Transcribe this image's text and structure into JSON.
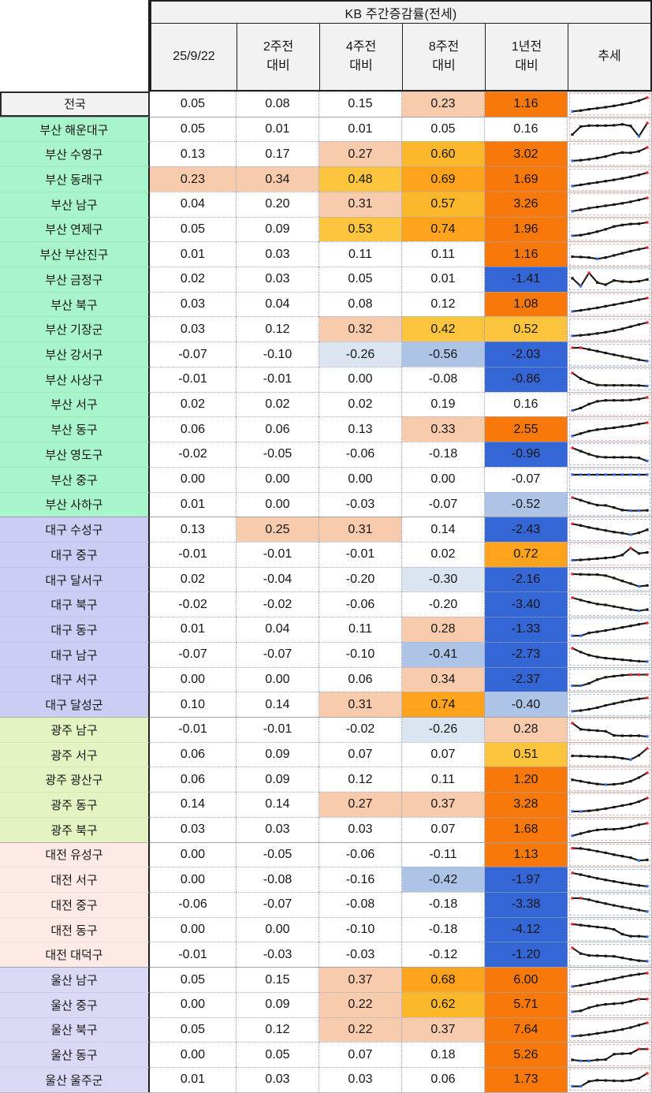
{
  "chart_data": {
    "type": "table",
    "title": "KB 주간증감률(전세)",
    "columns": [
      {
        "label": "25/9/22",
        "sub": ""
      },
      {
        "label": "2주전",
        "sub": "대비"
      },
      {
        "label": "4주전",
        "sub": "대비"
      },
      {
        "label": "8주전",
        "sub": "대비"
      },
      {
        "label": "1년전",
        "sub": "대비"
      },
      {
        "label": "추세",
        "sub": ""
      }
    ],
    "group_colors": {
      "national": "#f2f2f2",
      "busan": "#a8f4cb",
      "daegu": "#ccccf4",
      "gwangju": "#e5f3c2",
      "daejeon": "#fdeae7",
      "ulsan": "#d9d9f5"
    },
    "heat_scale": [
      {
        "min": 1.0,
        "color": "#f8790a"
      },
      {
        "min": 0.65,
        "color": "#ffa21c"
      },
      {
        "min": 0.55,
        "color": "#fdb72a"
      },
      {
        "min": 0.405,
        "color": "#fcc53d"
      },
      {
        "min": 0.21,
        "color": "#f8cbad"
      },
      {
        "min": -0.2099,
        "color": "#ffffff"
      },
      {
        "min": -0.3499,
        "color": "#dbe5f1"
      },
      {
        "min": -0.5999,
        "color": "#aec4e7"
      },
      {
        "min": -99,
        "color": "#3566d6"
      }
    ],
    "trend_border_colors": {
      "positive": "#f2aeaa",
      "negative": "#a5bdec"
    },
    "spark_colors": {
      "line": "#161616",
      "point": "#161616",
      "high": "#f52222",
      "low": "#2e6bee"
    },
    "rows": [
      {
        "region": "전국",
        "group": "national",
        "values": [
          "0.05",
          "0.08",
          "0.15",
          "0.23",
          "1.16"
        ],
        "trend": [
          0.06,
          0.12,
          0.2,
          0.27,
          0.34,
          0.42,
          0.52,
          0.62,
          0.76,
          0.96
        ]
      },
      {
        "region": "부산 해운대구",
        "group": "busan",
        "values": [
          "0.05",
          "0.01",
          "0.01",
          "0.05",
          "0.16"
        ],
        "trend": [
          0.2,
          0.72,
          0.78,
          0.78,
          0.78,
          0.8,
          0.86,
          0.76,
          0.08,
          0.95
        ]
      },
      {
        "region": "부산 수영구",
        "group": "busan",
        "values": [
          "0.13",
          "0.17",
          "0.27",
          "0.60",
          "3.02"
        ],
        "trend": [
          0.08,
          0.12,
          0.18,
          0.26,
          0.36,
          0.52,
          0.62,
          0.6,
          0.7,
          0.95
        ]
      },
      {
        "region": "부산 동래구",
        "group": "busan",
        "values": [
          "0.23",
          "0.34",
          "0.48",
          "0.69",
          "1.69"
        ],
        "trend": [
          0.08,
          0.16,
          0.24,
          0.32,
          0.4,
          0.48,
          0.58,
          0.68,
          0.8,
          0.95
        ]
      },
      {
        "region": "부산 남구",
        "group": "busan",
        "values": [
          "0.04",
          "0.20",
          "0.31",
          "0.57",
          "3.26"
        ],
        "trend": [
          0.08,
          0.18,
          0.28,
          0.36,
          0.44,
          0.52,
          0.6,
          0.7,
          0.82,
          0.95
        ]
      },
      {
        "region": "부산 연제구",
        "group": "busan",
        "values": [
          "0.05",
          "0.09",
          "0.53",
          "0.74",
          "1.96"
        ],
        "trend": [
          0.08,
          0.12,
          0.22,
          0.35,
          0.5,
          0.68,
          0.78,
          0.84,
          0.86,
          0.95
        ]
      },
      {
        "region": "부산 부산진구",
        "group": "busan",
        "values": [
          "0.01",
          "0.03",
          "0.11",
          "0.11",
          "1.16"
        ],
        "trend": [
          0.36,
          0.34,
          0.3,
          0.22,
          0.3,
          0.44,
          0.58,
          0.72,
          0.84,
          0.95
        ]
      },
      {
        "region": "부산 금정구",
        "group": "busan",
        "values": [
          "0.02",
          "0.03",
          "0.05",
          "0.01",
          "-1.41"
        ],
        "trend": [
          0.6,
          0.08,
          0.95,
          0.32,
          0.18,
          0.45,
          0.38,
          0.36,
          0.4,
          0.52
        ]
      },
      {
        "region": "부산 북구",
        "group": "busan",
        "values": [
          "0.03",
          "0.04",
          "0.08",
          "0.12",
          "1.08"
        ],
        "trend": [
          0.08,
          0.15,
          0.23,
          0.32,
          0.42,
          0.52,
          0.62,
          0.72,
          0.84,
          0.95
        ]
      },
      {
        "region": "부산 기장군",
        "group": "busan",
        "values": [
          "0.03",
          "0.12",
          "0.32",
          "0.42",
          "0.52"
        ],
        "trend": [
          0.08,
          0.12,
          0.17,
          0.24,
          0.32,
          0.42,
          0.54,
          0.68,
          0.82,
          0.95
        ]
      },
      {
        "region": "부산 강서구",
        "group": "busan",
        "values": [
          "-0.07",
          "-0.10",
          "-0.26",
          "-0.56",
          "-2.03"
        ],
        "trend": [
          0.95,
          0.95,
          0.84,
          0.73,
          0.61,
          0.5,
          0.39,
          0.28,
          0.17,
          0.08
        ]
      },
      {
        "region": "부산 사상구",
        "group": "busan",
        "values": [
          "-0.01",
          "-0.01",
          "0.00",
          "-0.08",
          "-0.86"
        ],
        "trend": [
          0.95,
          0.58,
          0.34,
          0.17,
          0.15,
          0.15,
          0.15,
          0.15,
          0.14,
          0.1
        ]
      },
      {
        "region": "부산 서구",
        "group": "busan",
        "values": [
          "0.02",
          "0.02",
          "0.02",
          "0.19",
          "0.16"
        ],
        "trend": [
          0.1,
          0.26,
          0.52,
          0.7,
          0.76,
          0.76,
          0.76,
          0.78,
          0.84,
          0.95
        ]
      },
      {
        "region": "부산 동구",
        "group": "busan",
        "values": [
          "0.06",
          "0.06",
          "0.13",
          "0.33",
          "2.55"
        ],
        "trend": [
          0.08,
          0.24,
          0.4,
          0.5,
          0.56,
          0.62,
          0.7,
          0.76,
          0.86,
          0.95
        ]
      },
      {
        "region": "부산 영도구",
        "group": "busan",
        "values": [
          "-0.02",
          "-0.05",
          "-0.06",
          "-0.18",
          "-0.96"
        ],
        "trend": [
          0.95,
          0.74,
          0.54,
          0.38,
          0.34,
          0.34,
          0.34,
          0.34,
          0.3,
          0.1
        ]
      },
      {
        "region": "부산 중구",
        "group": "busan",
        "values": [
          "0.00",
          "0.00",
          "0.00",
          "0.00",
          "-0.07"
        ],
        "trend": [
          0.85,
          0.85,
          0.85,
          0.85,
          0.85,
          0.85,
          0.85,
          0.85,
          0.85,
          0.85
        ]
      },
      {
        "region": "부산 사하구",
        "group": "busan",
        "values": [
          "0.01",
          "0.00",
          "-0.03",
          "-0.07",
          "-0.52"
        ],
        "trend": [
          0.95,
          0.78,
          0.6,
          0.46,
          0.44,
          0.3,
          0.14,
          0.1,
          0.1,
          0.12
        ]
      },
      {
        "region": "대구 수성구",
        "group": "daegu",
        "values": [
          "0.13",
          "0.25",
          "0.31",
          "0.14",
          "-2.43"
        ],
        "trend": [
          0.88,
          0.78,
          0.65,
          0.55,
          0.45,
          0.35,
          0.28,
          0.18,
          0.3,
          0.5
        ]
      },
      {
        "region": "대구 중구",
        "group": "daegu",
        "values": [
          "-0.01",
          "-0.01",
          "-0.01",
          "0.02",
          "0.72"
        ],
        "trend": [
          0.16,
          0.18,
          0.22,
          0.26,
          0.3,
          0.36,
          0.5,
          0.95,
          0.6,
          0.66
        ]
      },
      {
        "region": "대구 달서구",
        "group": "daegu",
        "values": [
          "0.02",
          "-0.04",
          "-0.20",
          "-0.30",
          "-2.16"
        ],
        "trend": [
          0.9,
          0.88,
          0.86,
          0.86,
          0.8,
          0.64,
          0.45,
          0.28,
          0.1,
          0.16
        ]
      },
      {
        "region": "대구 북구",
        "group": "daegu",
        "values": [
          "-0.02",
          "-0.02",
          "-0.06",
          "-0.20",
          "-3.40"
        ],
        "trend": [
          0.95,
          0.8,
          0.66,
          0.54,
          0.48,
          0.38,
          0.28,
          0.18,
          0.1,
          0.18
        ]
      },
      {
        "region": "대구 동구",
        "group": "daegu",
        "values": [
          "0.01",
          "0.04",
          "0.11",
          "0.28",
          "-1.33"
        ],
        "trend": [
          0.12,
          0.12,
          0.3,
          0.38,
          0.46,
          0.56,
          0.66,
          0.76,
          0.86,
          0.95
        ]
      },
      {
        "region": "대구 남구",
        "group": "daegu",
        "values": [
          "-0.07",
          "-0.07",
          "-0.10",
          "-0.41",
          "-2.73"
        ],
        "trend": [
          0.95,
          0.7,
          0.5,
          0.38,
          0.3,
          0.25,
          0.2,
          0.15,
          0.1,
          0.08
        ]
      },
      {
        "region": "대구 서구",
        "group": "daegu",
        "values": [
          "0.00",
          "0.00",
          "0.06",
          "0.34",
          "-2.37"
        ],
        "trend": [
          0.1,
          0.1,
          0.25,
          0.5,
          0.65,
          0.72,
          0.78,
          0.82,
          0.82,
          0.82
        ]
      },
      {
        "region": "대구 달성군",
        "group": "daegu",
        "values": [
          "0.10",
          "0.14",
          "0.31",
          "0.74",
          "-0.40"
        ],
        "trend": [
          0.08,
          0.13,
          0.21,
          0.32,
          0.46,
          0.58,
          0.7,
          0.8,
          0.88,
          0.95
        ]
      },
      {
        "region": "광주 남구",
        "group": "gwangju",
        "values": [
          "-0.01",
          "-0.01",
          "-0.02",
          "-0.26",
          "0.28"
        ],
        "trend": [
          0.95,
          0.55,
          0.5,
          0.46,
          0.42,
          0.15,
          0.13,
          0.13,
          0.13,
          0.08
        ]
      },
      {
        "region": "광주 서구",
        "group": "gwangju",
        "values": [
          "0.06",
          "0.09",
          "0.07",
          "0.07",
          "0.51"
        ],
        "trend": [
          0.46,
          0.45,
          0.43,
          0.41,
          0.4,
          0.38,
          0.3,
          0.22,
          0.5,
          0.95
        ]
      },
      {
        "region": "광주 광산구",
        "group": "gwangju",
        "values": [
          "0.06",
          "0.09",
          "0.12",
          "0.11",
          "1.20"
        ],
        "trend": [
          0.5,
          0.4,
          0.3,
          0.22,
          0.18,
          0.2,
          0.26,
          0.4,
          0.64,
          0.95
        ]
      },
      {
        "region": "광주 동구",
        "group": "gwangju",
        "values": [
          "0.14",
          "0.14",
          "0.27",
          "0.37",
          "3.28"
        ],
        "trend": [
          0.08,
          0.08,
          0.12,
          0.18,
          0.26,
          0.36,
          0.46,
          0.56,
          0.72,
          0.95
        ]
      },
      {
        "region": "광주 북구",
        "group": "gwangju",
        "values": [
          "0.03",
          "0.03",
          "0.03",
          "0.07",
          "1.68"
        ],
        "trend": [
          0.14,
          0.28,
          0.42,
          0.52,
          0.56,
          0.56,
          0.62,
          0.72,
          0.85,
          0.95
        ]
      },
      {
        "region": "대전 유성구",
        "group": "daejeon",
        "values": [
          "0.00",
          "-0.05",
          "-0.06",
          "-0.11",
          "1.13"
        ],
        "trend": [
          0.92,
          0.9,
          0.82,
          0.72,
          0.62,
          0.5,
          0.4,
          0.3,
          0.12,
          0.16
        ]
      },
      {
        "region": "대전 서구",
        "group": "daejeon",
        "values": [
          "0.00",
          "-0.08",
          "-0.16",
          "-0.42",
          "-1.97"
        ],
        "trend": [
          0.95,
          0.84,
          0.72,
          0.6,
          0.5,
          0.4,
          0.3,
          0.22,
          0.14,
          0.08
        ]
      },
      {
        "region": "대전 중구",
        "group": "daejeon",
        "values": [
          "-0.06",
          "-0.07",
          "-0.08",
          "-0.18",
          "-3.38"
        ],
        "trend": [
          0.95,
          0.95,
          0.85,
          0.72,
          0.6,
          0.48,
          0.38,
          0.28,
          0.18,
          0.08
        ]
      },
      {
        "region": "대전 동구",
        "group": "daejeon",
        "values": [
          "0.00",
          "0.00",
          "-0.10",
          "-0.18",
          "-4.12"
        ],
        "trend": [
          0.9,
          0.84,
          0.78,
          0.72,
          0.66,
          0.56,
          0.25,
          0.12,
          0.12,
          0.08
        ]
      },
      {
        "region": "대전 대덕구",
        "group": "daejeon",
        "values": [
          "-0.01",
          "-0.03",
          "-0.03",
          "-0.12",
          "-1.20"
        ],
        "trend": [
          0.95,
          0.58,
          0.46,
          0.44,
          0.42,
          0.4,
          0.3,
          0.2,
          0.12,
          0.08
        ]
      },
      {
        "region": "울산 남구",
        "group": "ulsan",
        "values": [
          "0.05",
          "0.15",
          "0.37",
          "0.68",
          "6.00"
        ],
        "trend": [
          0.08,
          0.16,
          0.26,
          0.36,
          0.48,
          0.58,
          0.7,
          0.8,
          0.88,
          0.95
        ]
      },
      {
        "region": "울산 중구",
        "group": "ulsan",
        "values": [
          "0.00",
          "0.09",
          "0.22",
          "0.62",
          "5.71"
        ],
        "trend": [
          0.08,
          0.14,
          0.34,
          0.48,
          0.56,
          0.6,
          0.64,
          0.76,
          0.9,
          0.9
        ]
      },
      {
        "region": "울산 북구",
        "group": "ulsan",
        "values": [
          "0.05",
          "0.12",
          "0.22",
          "0.37",
          "7.64"
        ],
        "trend": [
          0.08,
          0.12,
          0.18,
          0.26,
          0.34,
          0.42,
          0.52,
          0.64,
          0.8,
          0.95
        ]
      },
      {
        "region": "울산 동구",
        "group": "ulsan",
        "values": [
          "0.00",
          "0.05",
          "0.07",
          "0.18",
          "5.26"
        ],
        "trend": [
          0.18,
          0.12,
          0.12,
          0.18,
          0.2,
          0.55,
          0.58,
          0.6,
          0.88,
          0.88
        ]
      },
      {
        "region": "울산 울주군",
        "group": "ulsan",
        "values": [
          "0.01",
          "0.03",
          "0.03",
          "0.06",
          "1.73"
        ],
        "trend": [
          0.1,
          0.1,
          0.42,
          0.5,
          0.48,
          0.46,
          0.45,
          0.5,
          0.62,
          0.95
        ]
      }
    ]
  }
}
